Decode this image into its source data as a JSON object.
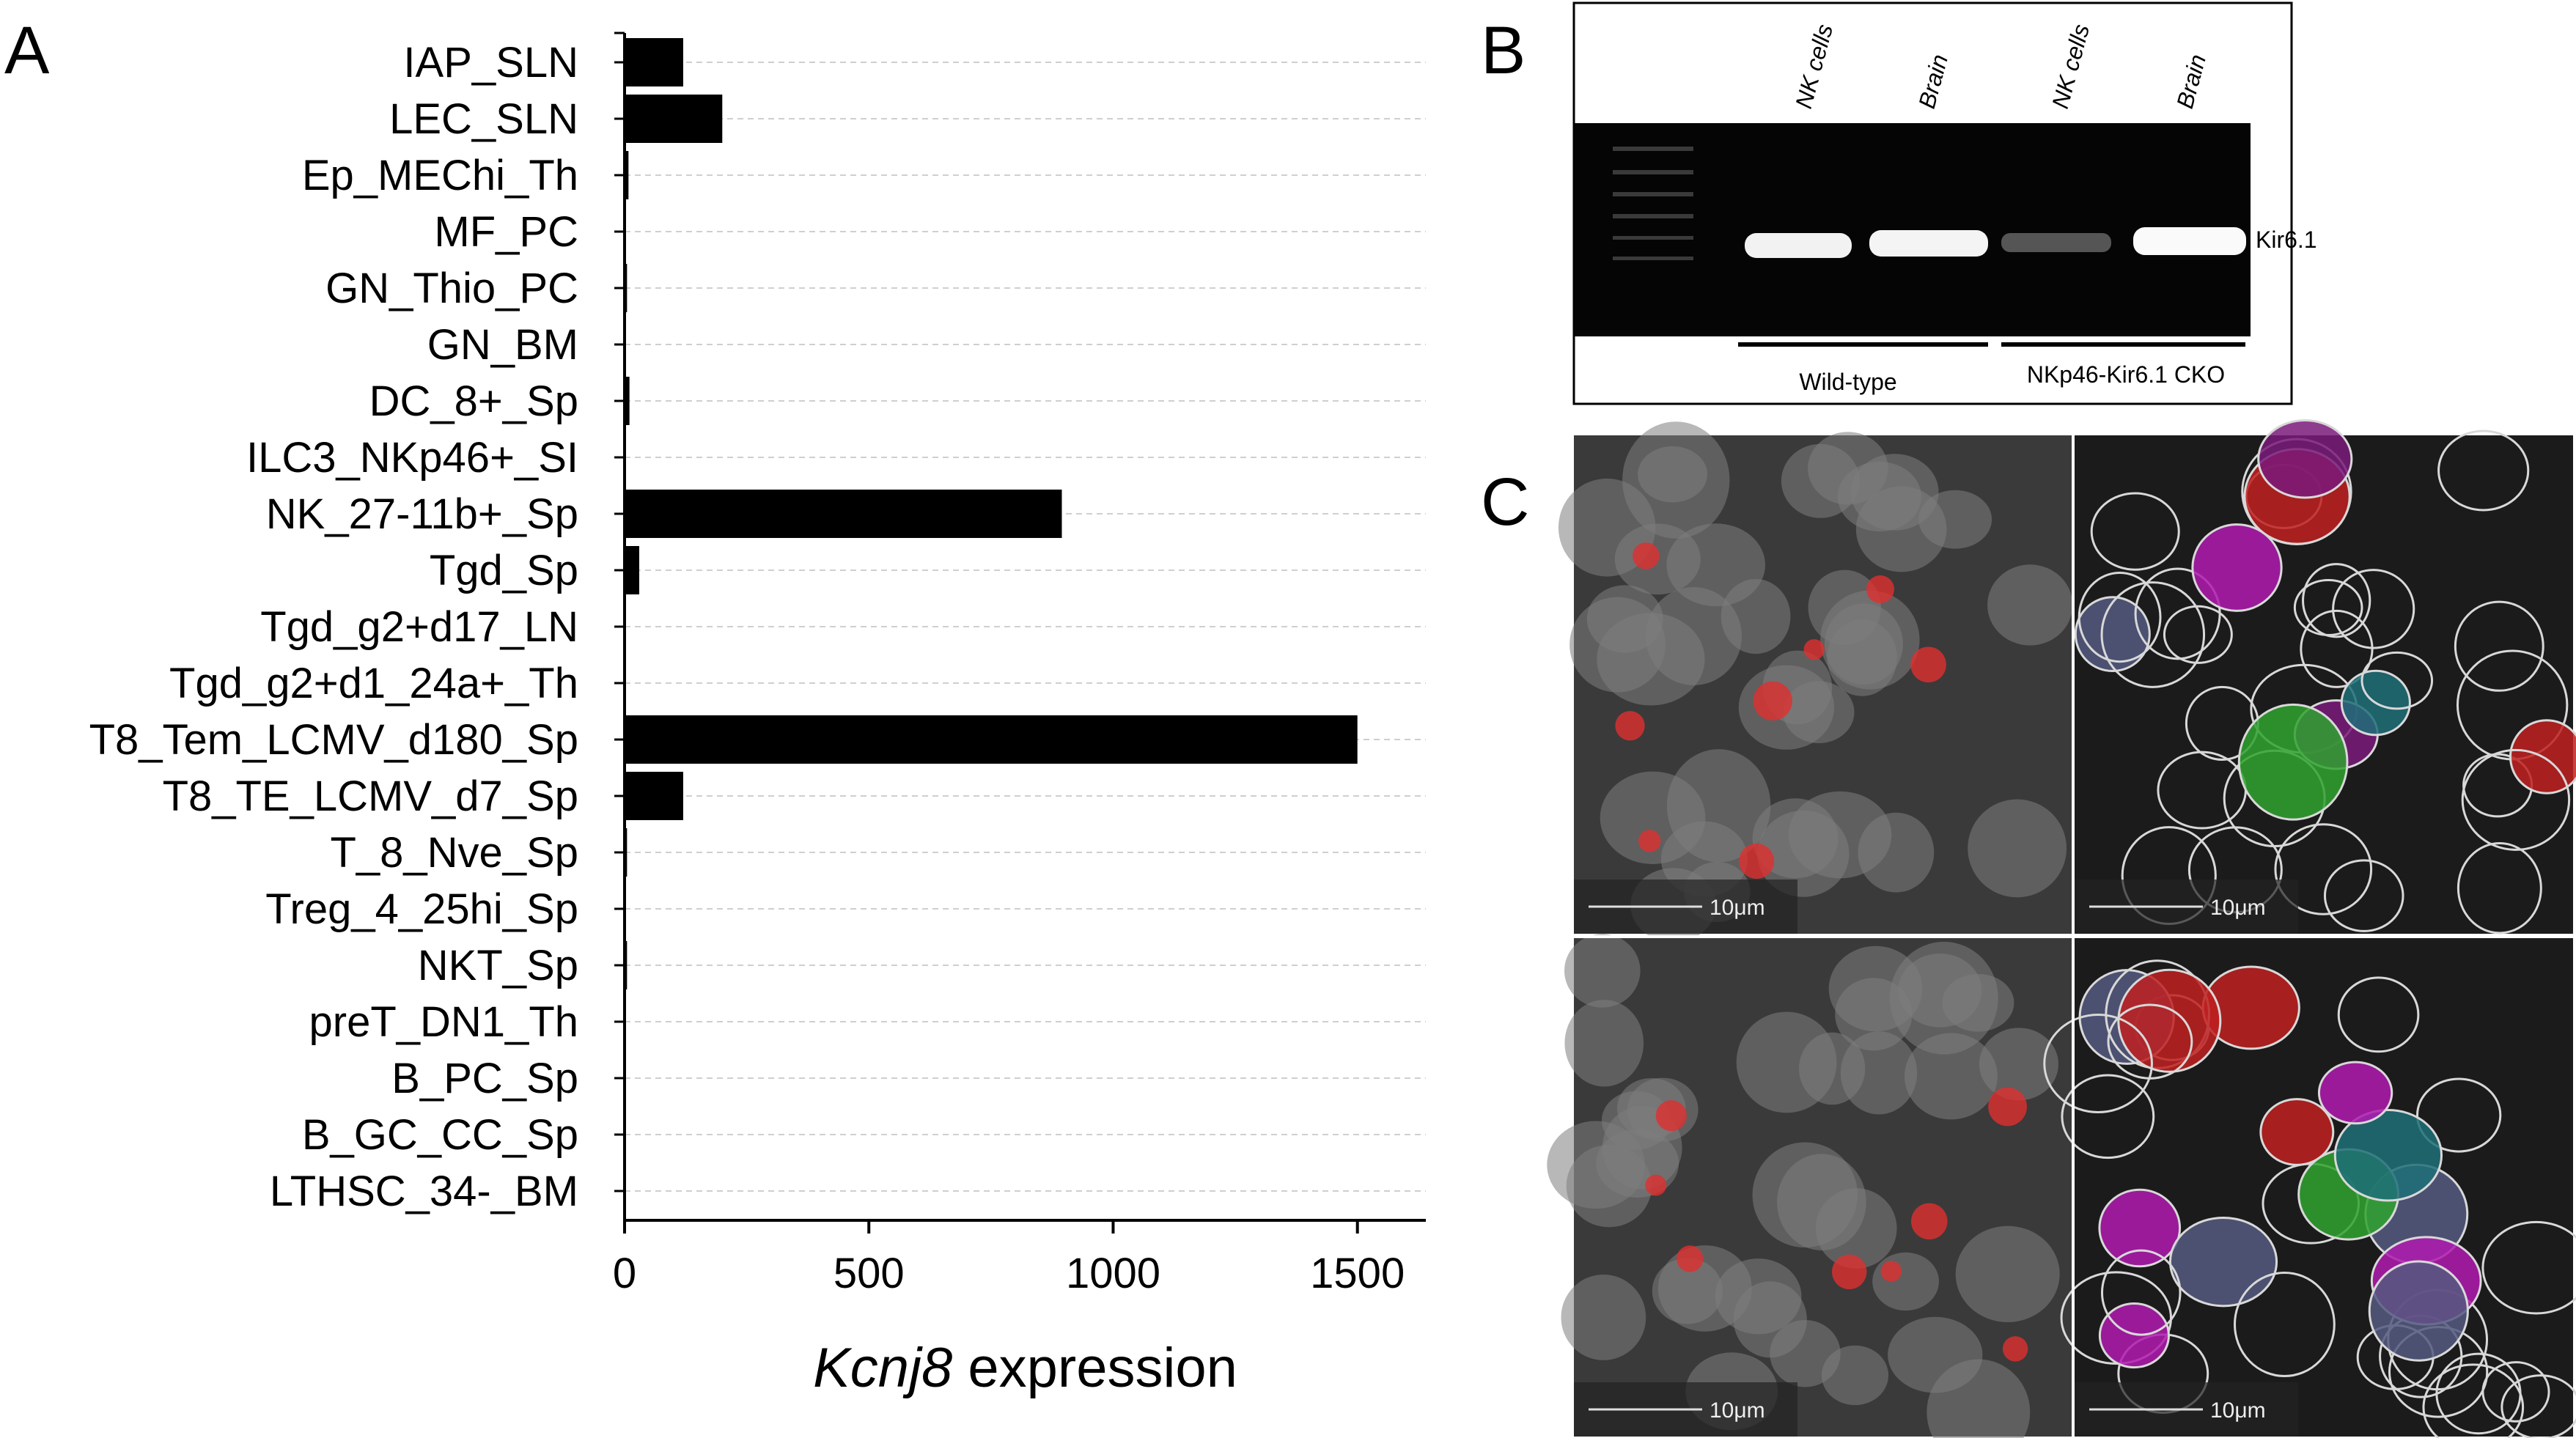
{
  "panel_labels": [
    "A",
    "B",
    "C"
  ],
  "chart_data": {
    "type": "barh",
    "categories": [
      "IAP_SLN",
      "LEC_SLN",
      "Ep_MEChi_Th",
      "MF_PC",
      "GN_Thio_PC",
      "GN_BM",
      "DC_8+_Sp",
      "ILC3_NKp46+_SI",
      "NK_27-11b+_Sp",
      "Tgd_Sp",
      "Tgd_g2+d17_LN",
      "Tgd_g2+d1_24a+_Th",
      "T8_Tem_LCMV_d180_Sp",
      "T8_TE_LCMV_d7_Sp",
      "T_8_Nve_Sp",
      "Treg_4_25hi_Sp",
      "NKT_Sp",
      "preT_DN1_Th",
      "B_PC_Sp",
      "B_GC_CC_Sp",
      "LTHSC_34-_BM"
    ],
    "values": [
      120,
      200,
      8,
      0,
      5,
      0,
      10,
      0,
      895,
      30,
      0,
      0,
      1500,
      120,
      5,
      0,
      5,
      0,
      0,
      0,
      0
    ],
    "color": "#000000",
    "xlim": [
      0,
      1640
    ],
    "xticks": [
      0,
      500,
      1000,
      1500
    ],
    "x_label_gene": "Kcnj8",
    "x_label": "expression",
    "grid": true
  },
  "gel": {
    "lanes": [
      "NK cells",
      "Brain",
      "NK cells",
      "Brain"
    ],
    "band": "Kir6.1",
    "groups": [
      "Wild-type",
      "NKp46-Kir6.1 CKO"
    ]
  },
  "micrographs": {
    "scale_bar": "10μm"
  }
}
